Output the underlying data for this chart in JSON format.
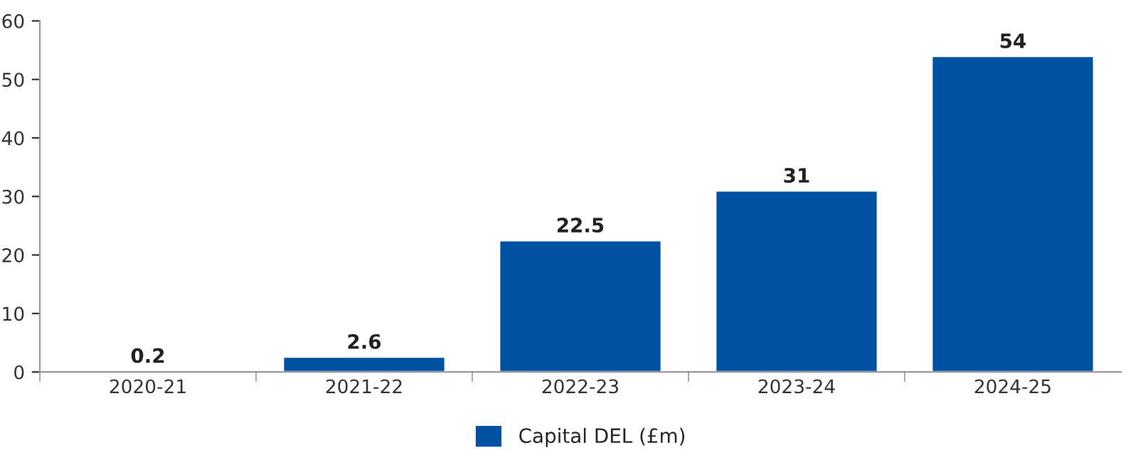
{
  "chart_data": {
    "type": "bar",
    "categories": [
      "2020-21",
      "2021-22",
      "2022-23",
      "2023-24",
      "2024-25"
    ],
    "series": [
      {
        "name": "Capital DEL (£m)",
        "color": "#0052a5",
        "values": [
          0.2,
          2.6,
          22.5,
          31,
          54
        ]
      }
    ],
    "ylim": [
      0,
      60
    ],
    "yticks": [
      0,
      10,
      20,
      30,
      40,
      50,
      60
    ],
    "data_labels": true,
    "grid": false,
    "legend": "bottom"
  }
}
